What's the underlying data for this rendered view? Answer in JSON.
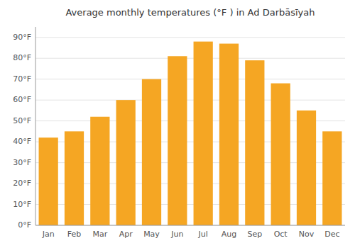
{
  "chart_data": {
    "type": "bar",
    "title": "Average monthly temperatures (°F ) in Ad Darbāsīyah",
    "categories": [
      "Jan",
      "Feb",
      "Mar",
      "Apr",
      "May",
      "Jun",
      "Jul",
      "Aug",
      "Sep",
      "Oct",
      "Nov",
      "Dec"
    ],
    "values": [
      42,
      45,
      52,
      60,
      70,
      81,
      88,
      87,
      79,
      68,
      55,
      45
    ],
    "color": "#F5A623",
    "ylim": [
      0,
      95
    ],
    "yticks": [
      {
        "value": 0,
        "label": "0°F"
      },
      {
        "value": 10,
        "label": "10°F"
      },
      {
        "value": 20,
        "label": "20°F"
      },
      {
        "value": 30,
        "label": "30°F"
      },
      {
        "value": 40,
        "label": "40°F"
      },
      {
        "value": 50,
        "label": "50°F"
      },
      {
        "value": 60,
        "label": "60°F"
      },
      {
        "value": 70,
        "label": "70°F"
      },
      {
        "value": 80,
        "label": "80°F"
      },
      {
        "value": 90,
        "label": "90°F"
      }
    ],
    "grid": true
  }
}
